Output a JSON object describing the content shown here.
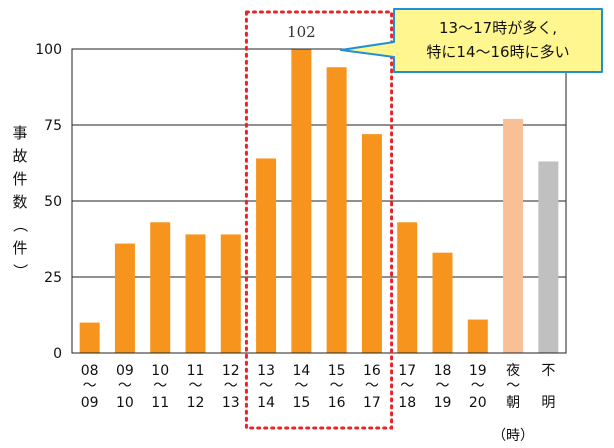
{
  "chart_data": {
    "type": "bar",
    "title": "",
    "xlabel": "（時）",
    "ylabel": "事故件数（件）",
    "ylim": [
      0,
      100
    ],
    "yticks": [
      "0",
      "25",
      "50",
      "75",
      "100"
    ],
    "grid": true,
    "legend": "none",
    "categories": [
      {
        "top": "08",
        "mid": "～",
        "bottom": "09"
      },
      {
        "top": "09",
        "mid": "～",
        "bottom": "10"
      },
      {
        "top": "10",
        "mid": "～",
        "bottom": "11"
      },
      {
        "top": "11",
        "mid": "～",
        "bottom": "12"
      },
      {
        "top": "12",
        "mid": "～",
        "bottom": "13"
      },
      {
        "top": "13",
        "mid": "～",
        "bottom": "14"
      },
      {
        "top": "14",
        "mid": "～",
        "bottom": "15"
      },
      {
        "top": "15",
        "mid": "～",
        "bottom": "16"
      },
      {
        "top": "16",
        "mid": "～",
        "bottom": "17"
      },
      {
        "top": "17",
        "mid": "～",
        "bottom": "18"
      },
      {
        "top": "18",
        "mid": "～",
        "bottom": "19"
      },
      {
        "top": "19",
        "mid": "～",
        "bottom": "20"
      },
      {
        "top": "夜",
        "mid": "～",
        "bottom": "朝"
      },
      {
        "top": "不",
        "mid": "",
        "bottom": "明"
      }
    ],
    "values": [
      10,
      36,
      43,
      39,
      39,
      64,
      102,
      94,
      72,
      43,
      33,
      11,
      77,
      63
    ],
    "colors": [
      "#f7941d",
      "#f7941d",
      "#f7941d",
      "#f7941d",
      "#f7941d",
      "#f7941d",
      "#f7941d",
      "#f7941d",
      "#f7941d",
      "#f7941d",
      "#f7941d",
      "#f7941d",
      "#f9bf95",
      "#c0c0c0"
    ],
    "data_labels": [
      {
        "index": 6,
        "text": "102"
      }
    ],
    "highlight": {
      "from_index": 5,
      "to_index": 8,
      "color": "#e8232a",
      "style": "dotted"
    },
    "annotation": {
      "lines": [
        "13～17時が多く,",
        "特に14～16時に多い"
      ],
      "background": "#fff68f",
      "border": "#1f8fd6"
    }
  }
}
